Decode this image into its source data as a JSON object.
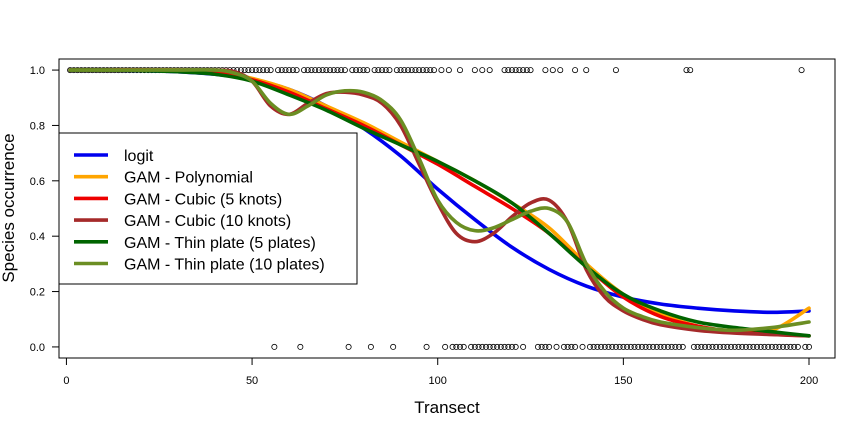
{
  "chart_data": {
    "type": "line",
    "title": "",
    "xlabel": "Transect",
    "ylabel": "Species occurrence",
    "xlim": [
      -2,
      207
    ],
    "ylim": [
      -0.04,
      1.04
    ],
    "xticks": [
      0,
      50,
      100,
      150,
      200
    ],
    "yticks": [
      0.0,
      0.2,
      0.4,
      0.6,
      0.8,
      1.0
    ],
    "xtick_labels": [
      "0",
      "50",
      "100",
      "150",
      "200"
    ],
    "ytick_labels": [
      "0.0",
      "0.2",
      "0.4",
      "0.6",
      "0.8",
      "1.0"
    ],
    "grid": false,
    "legend_position": "left",
    "observations": {
      "presence_x": [
        1,
        2,
        3,
        4,
        5,
        6,
        7,
        8,
        9,
        10,
        11,
        12,
        13,
        14,
        15,
        16,
        17,
        18,
        19,
        20,
        21,
        22,
        23,
        24,
        25,
        26,
        27,
        28,
        29,
        30,
        31,
        32,
        33,
        34,
        35,
        36,
        37,
        38,
        39,
        40,
        41,
        42,
        43,
        44,
        45,
        46,
        47,
        48,
        49,
        50,
        51,
        52,
        53,
        54,
        55,
        57,
        58,
        59,
        60,
        61,
        62,
        64,
        65,
        66,
        67,
        68,
        69,
        70,
        71,
        72,
        73,
        74,
        75,
        77,
        78,
        79,
        80,
        81,
        83,
        84,
        85,
        86,
        87,
        89,
        90,
        91,
        92,
        93,
        94,
        95,
        96,
        97,
        98,
        99,
        101,
        103,
        106,
        110,
        112,
        114,
        118,
        119,
        120,
        121,
        122,
        123,
        124,
        125,
        129,
        131,
        133,
        137,
        140,
        148,
        167,
        168,
        198
      ],
      "absence_x": [
        56,
        63,
        76,
        82,
        88,
        97,
        102,
        104,
        105,
        106,
        107,
        109,
        110,
        111,
        112,
        113,
        114,
        115,
        116,
        117,
        118,
        119,
        120,
        121,
        123,
        127,
        128,
        129,
        130,
        132,
        134,
        135,
        136,
        137,
        139,
        141,
        142,
        143,
        144,
        145,
        146,
        147,
        148,
        149,
        150,
        151,
        152,
        153,
        154,
        155,
        156,
        157,
        158,
        159,
        160,
        161,
        162,
        163,
        164,
        165,
        166,
        169,
        170,
        171,
        172,
        173,
        174,
        175,
        176,
        177,
        178,
        179,
        180,
        181,
        182,
        183,
        184,
        185,
        186,
        187,
        188,
        189,
        190,
        191,
        192,
        193,
        194,
        195,
        196,
        197,
        199,
        200
      ]
    },
    "series": [
      {
        "name": "logit",
        "color": "#0000ee",
        "x": [
          1,
          10,
          20,
          30,
          40,
          50,
          60,
          70,
          80,
          90,
          100,
          110,
          120,
          130,
          140,
          150,
          160,
          170,
          180,
          190,
          200
        ],
        "y": [
          1.0,
          1.0,
          0.998,
          0.994,
          0.985,
          0.966,
          0.93,
          0.87,
          0.79,
          0.69,
          0.57,
          0.46,
          0.36,
          0.28,
          0.22,
          0.18,
          0.155,
          0.14,
          0.13,
          0.125,
          0.13
        ]
      },
      {
        "name": "GAM - Polynomial",
        "color": "#ffa500",
        "x": [
          1,
          10,
          20,
          30,
          40,
          50,
          60,
          70,
          80,
          90,
          100,
          110,
          120,
          130,
          140,
          150,
          160,
          170,
          180,
          190,
          200
        ],
        "y": [
          1.0,
          1.0,
          1.0,
          1.0,
          0.995,
          0.97,
          0.93,
          0.87,
          0.81,
          0.74,
          0.67,
          0.6,
          0.52,
          0.43,
          0.3,
          0.19,
          0.12,
          0.075,
          0.055,
          0.06,
          0.14
        ]
      },
      {
        "name": "GAM - Cubic (5 knots)",
        "color": "#ee0000",
        "x": [
          1,
          10,
          20,
          30,
          40,
          50,
          60,
          70,
          80,
          90,
          100,
          110,
          120,
          130,
          140,
          150,
          160,
          170,
          180,
          190,
          200
        ],
        "y": [
          1.0,
          1.0,
          1.0,
          0.998,
          0.99,
          0.965,
          0.92,
          0.86,
          0.8,
          0.73,
          0.66,
          0.58,
          0.5,
          0.41,
          0.29,
          0.18,
          0.11,
          0.075,
          0.055,
          0.045,
          0.04
        ]
      },
      {
        "name": "GAM - Cubic (10 knots)",
        "color": "#a52a2a",
        "x": [
          1,
          10,
          20,
          30,
          40,
          45,
          50,
          55,
          60,
          65,
          70,
          75,
          80,
          85,
          90,
          95,
          100,
          105,
          110,
          115,
          120,
          125,
          130,
          135,
          140,
          145,
          150,
          155,
          160,
          170,
          180,
          190,
          200
        ],
        "y": [
          1.0,
          1.0,
          1.0,
          1.0,
          1.0,
          0.995,
          0.96,
          0.87,
          0.84,
          0.88,
          0.915,
          0.92,
          0.91,
          0.88,
          0.8,
          0.66,
          0.52,
          0.41,
          0.38,
          0.41,
          0.47,
          0.52,
          0.53,
          0.45,
          0.28,
          0.18,
          0.13,
          0.1,
          0.08,
          0.06,
          0.05,
          0.045,
          0.04
        ]
      },
      {
        "name": "GAM - Thin plate (5 plates)",
        "color": "#006400",
        "x": [
          1,
          10,
          20,
          30,
          40,
          50,
          60,
          70,
          80,
          90,
          100,
          110,
          120,
          130,
          140,
          150,
          160,
          170,
          180,
          190,
          200
        ],
        "y": [
          1.0,
          1.0,
          0.998,
          0.994,
          0.985,
          0.96,
          0.91,
          0.855,
          0.79,
          0.73,
          0.67,
          0.6,
          0.52,
          0.41,
          0.29,
          0.19,
          0.13,
          0.09,
          0.07,
          0.055,
          0.04
        ]
      },
      {
        "name": "GAM - Thin plate (10 plates)",
        "color": "#6b8e23",
        "x": [
          1,
          10,
          20,
          30,
          40,
          45,
          50,
          55,
          60,
          65,
          70,
          75,
          80,
          85,
          90,
          95,
          100,
          105,
          110,
          115,
          120,
          125,
          130,
          135,
          140,
          145,
          150,
          155,
          160,
          170,
          180,
          190,
          200
        ],
        "y": [
          1.0,
          1.0,
          1.0,
          1.0,
          1.0,
          0.99,
          0.96,
          0.88,
          0.84,
          0.87,
          0.91,
          0.925,
          0.92,
          0.89,
          0.82,
          0.68,
          0.53,
          0.45,
          0.42,
          0.43,
          0.46,
          0.49,
          0.5,
          0.45,
          0.3,
          0.2,
          0.14,
          0.11,
          0.09,
          0.07,
          0.06,
          0.07,
          0.09
        ]
      }
    ]
  }
}
